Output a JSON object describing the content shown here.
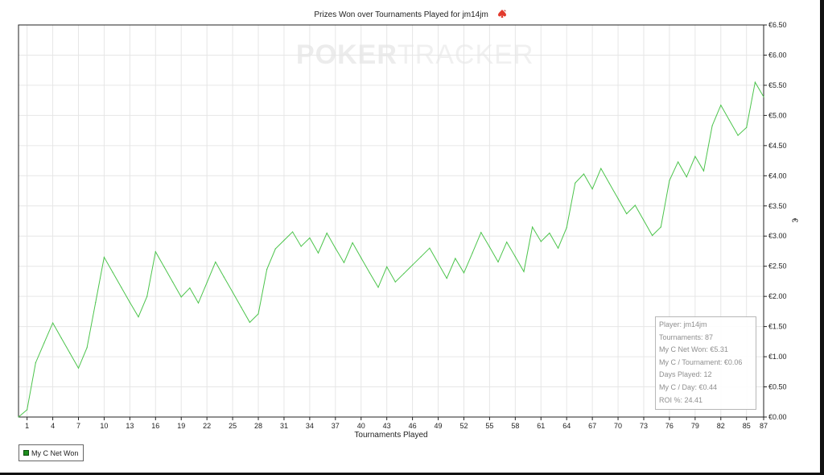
{
  "header": {
    "title": "Prizes Won over Tournaments Played for jm14jm",
    "icon": "spade-icon"
  },
  "watermark": {
    "part1": "POKER",
    "part2": "TRACKER"
  },
  "stats": [
    "Player: jm14jm",
    "Tournaments: 87",
    "My C Net Won: €5.31",
    "My C / Tournament: €0.06",
    "Days Played: 12",
    "My C / Day: €0.44",
    "ROI %: 24.41"
  ],
  "legend": {
    "label": "My C Net Won"
  },
  "colors": {
    "line": "#4cc44c",
    "grid": "#e6e6e6",
    "axis": "#222222"
  },
  "chart_data": {
    "type": "line",
    "title": "Prizes Won over Tournaments Played for jm14jm",
    "xlabel": "Tournaments Played",
    "ylabel": "€",
    "xlim": [
      0,
      87
    ],
    "ylim": [
      0,
      6.5
    ],
    "grid": true,
    "legend_position": "bottom-left",
    "xticks": [
      1,
      4,
      7,
      10,
      13,
      16,
      19,
      22,
      25,
      28,
      31,
      34,
      37,
      40,
      43,
      46,
      49,
      52,
      55,
      58,
      61,
      64,
      67,
      70,
      73,
      76,
      79,
      82,
      85,
      87
    ],
    "yticks": [
      0,
      0.5,
      1.0,
      1.5,
      2.0,
      2.5,
      3.0,
      3.5,
      4.0,
      4.5,
      5.0,
      5.5,
      6.0,
      6.5
    ],
    "ytick_labels": [
      "€0.00",
      "€0.50",
      "€1.00",
      "€1.50",
      "€2.00",
      "€2.50",
      "€3.00",
      "€3.50",
      "€4.00",
      "€4.50",
      "€5.00",
      "€5.50",
      "€6.00",
      "€6.50"
    ],
    "series": [
      {
        "name": "My C Net Won",
        "x": [
          0,
          1,
          2,
          3,
          4,
          5,
          6,
          7,
          8,
          9,
          10,
          11,
          12,
          13,
          14,
          15,
          16,
          17,
          18,
          19,
          20,
          21,
          22,
          23,
          24,
          25,
          26,
          27,
          28,
          29,
          30,
          31,
          32,
          33,
          34,
          35,
          36,
          37,
          38,
          39,
          40,
          41,
          42,
          43,
          44,
          45,
          46,
          47,
          48,
          49,
          50,
          51,
          52,
          53,
          54,
          55,
          56,
          57,
          58,
          59,
          60,
          61,
          62,
          63,
          64,
          65,
          66,
          67,
          68,
          69,
          70,
          71,
          72,
          73,
          74,
          75,
          76,
          77,
          78,
          79,
          80,
          81,
          82,
          83,
          84,
          85,
          86,
          87
        ],
        "values": [
          0.0,
          0.12,
          0.9,
          1.23,
          1.56,
          1.31,
          1.06,
          0.81,
          1.15,
          1.9,
          2.65,
          2.4,
          2.15,
          1.9,
          1.66,
          2.0,
          2.74,
          2.49,
          2.24,
          1.99,
          2.14,
          1.89,
          2.23,
          2.57,
          2.32,
          2.07,
          1.82,
          1.57,
          1.71,
          2.45,
          2.79,
          2.93,
          3.07,
          2.83,
          2.97,
          2.72,
          3.05,
          2.8,
          2.56,
          2.89,
          2.64,
          2.39,
          2.15,
          2.49,
          2.24,
          2.38,
          2.52,
          2.66,
          2.8,
          2.55,
          2.3,
          2.63,
          2.39,
          2.72,
          3.06,
          2.82,
          2.57,
          2.9,
          2.66,
          2.41,
          3.15,
          2.91,
          3.05,
          2.8,
          3.14,
          3.88,
          4.03,
          3.78,
          4.12,
          3.87,
          3.62,
          3.37,
          3.51,
          3.26,
          3.01,
          3.15,
          3.92,
          4.23,
          3.98,
          4.32,
          4.08,
          4.83,
          5.17,
          4.92,
          4.67,
          4.8,
          5.55,
          5.31
        ]
      }
    ]
  }
}
